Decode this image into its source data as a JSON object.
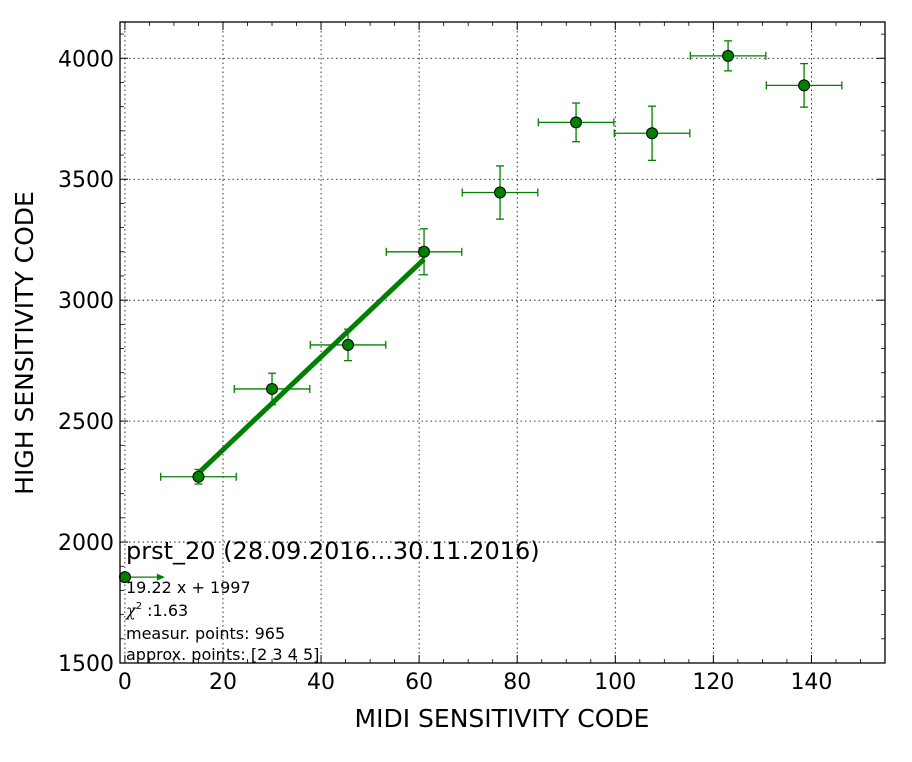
{
  "chart_data": {
    "type": "scatter",
    "xlabel": "MIDI SENSITIVITY CODE",
    "ylabel": "HIGH SENSITIVITY CODE",
    "xlim": [
      -1,
      155
    ],
    "ylim": [
      1500,
      4150
    ],
    "xticks": [
      0,
      20,
      40,
      60,
      80,
      100,
      120,
      140
    ],
    "yticks": [
      1500,
      2000,
      2500,
      3000,
      3500,
      4000
    ],
    "grid": true,
    "color": "#008000",
    "points": [
      {
        "x": 15,
        "y": 2270,
        "xerr": 7.7,
        "yerr": 30
      },
      {
        "x": 30,
        "y": 2633,
        "xerr": 7.7,
        "yerr": 65
      },
      {
        "x": 45.5,
        "y": 2815,
        "xerr": 7.7,
        "yerr": 65
      },
      {
        "x": 61,
        "y": 3200,
        "xerr": 7.7,
        "yerr": 95
      },
      {
        "x": 76.5,
        "y": 3445,
        "xerr": 7.7,
        "yerr": 110
      },
      {
        "x": 92,
        "y": 3735,
        "xerr": 7.7,
        "yerr": 80
      },
      {
        "x": 107.5,
        "y": 3690,
        "xerr": 7.7,
        "yerr": 112
      },
      {
        "x": 123,
        "y": 4010,
        "xerr": 7.7,
        "yerr": 62
      },
      {
        "x": 138.5,
        "y": 3888,
        "xerr": 7.7,
        "yerr": 90
      }
    ],
    "reference_point": {
      "x": 0,
      "y": 1855
    },
    "fit": {
      "slope": 19.22,
      "intercept": 1997,
      "x_range": [
        15,
        61
      ]
    },
    "annotations": {
      "title": "prst_20 (28.09.2016...30.11.2016)",
      "equation": "19.22 x + 1997",
      "chi_symbol": "χ",
      "chi_sup": "2",
      "chi_value": " :1.63",
      "measur": "measur. points: 965",
      "approx": "approx. points: [2 3 4 5]"
    }
  }
}
